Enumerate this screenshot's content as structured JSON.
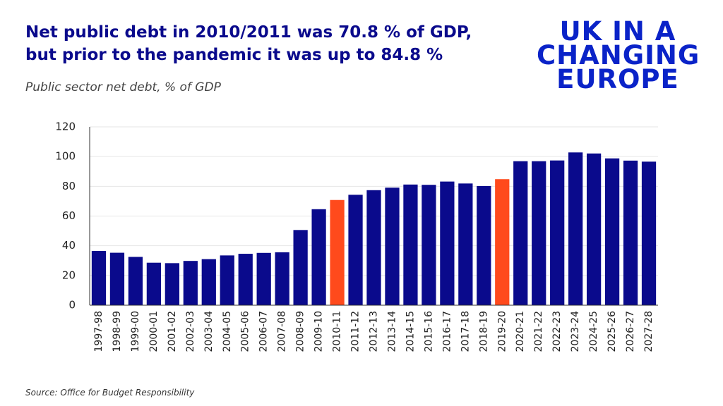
{
  "chart_data": {
    "type": "bar",
    "title": "Net public debt in 2010/2011 was 70.8 % of GDP, but prior to the pandemic it was up to 84.8 %",
    "subtitle": "Public sector net debt, % of GDP",
    "logo": [
      "UK IN A",
      "CHANGING",
      "EUROPE"
    ],
    "source": "Source: Office for Budget Responsibility",
    "categories": [
      "1997-98",
      "1998-99",
      "1999-00",
      "2000-01",
      "2001-02",
      "2002-03",
      "2003-04",
      "2004-05",
      "2005-06",
      "2006-07",
      "2007-08",
      "2008-09",
      "2009-10",
      "2010-11",
      "2011-12",
      "2012-13",
      "2013-14",
      "2014-15",
      "2015-16",
      "2016-17",
      "2017-18",
      "2018-19",
      "2019-20",
      "2020-21",
      "2021-22",
      "2022-23",
      "2023-24",
      "2024-25",
      "2025-26",
      "2026-27",
      "2027-28"
    ],
    "values": [
      36.5,
      35.3,
      32.5,
      28.6,
      28.3,
      29.8,
      31.0,
      33.5,
      34.6,
      35.2,
      35.6,
      50.6,
      64.6,
      70.8,
      74.3,
      77.4,
      79.1,
      81.2,
      81.0,
      83.2,
      81.9,
      80.2,
      84.8,
      96.9,
      96.9,
      97.4,
      102.8,
      102.1,
      98.8,
      97.3,
      96.6
    ],
    "colors": [
      "#0a0a8c",
      "#0a0a8c",
      "#0a0a8c",
      "#0a0a8c",
      "#0a0a8c",
      "#0a0a8c",
      "#0a0a8c",
      "#0a0a8c",
      "#0a0a8c",
      "#0a0a8c",
      "#0a0a8c",
      "#0a0a8c",
      "#0a0a8c",
      "#ff4a1c",
      "#0a0a8c",
      "#0a0a8c",
      "#0a0a8c",
      "#0a0a8c",
      "#0a0a8c",
      "#0a0a8c",
      "#0a0a8c",
      "#0a0a8c",
      "#ff4a1c",
      "#0a0a8c",
      "#0a0a8c",
      "#0a0a8c",
      "#0a0a8c",
      "#0a0a8c",
      "#0a0a8c",
      "#0a0a8c",
      "#0a0a8c"
    ],
    "ylim": [
      0,
      120
    ],
    "yticks": [
      0,
      20,
      40,
      60,
      80,
      100,
      120
    ],
    "grid": true
  }
}
